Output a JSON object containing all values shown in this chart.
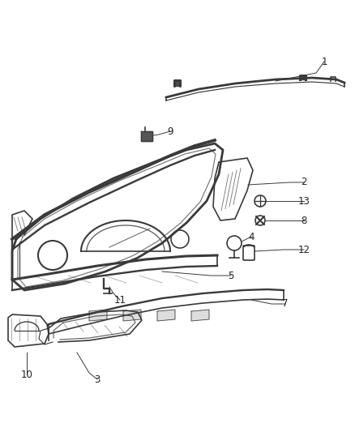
{
  "background_color": "#ffffff",
  "line_color": "#3a3a3a",
  "label_color": "#222222",
  "label_fontsize": 8.5,
  "lw": 1.2
}
